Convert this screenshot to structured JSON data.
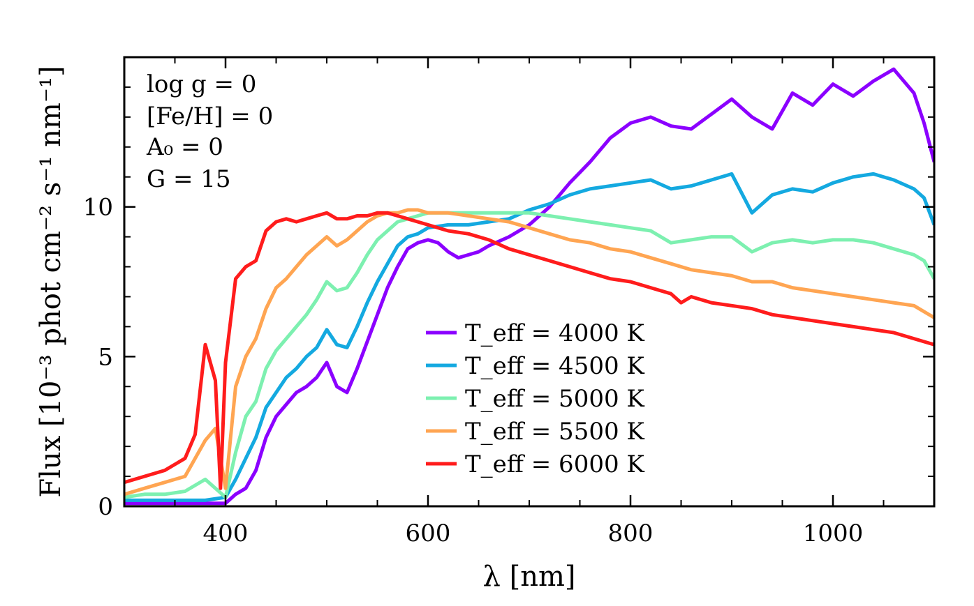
{
  "chart_data": {
    "type": "line",
    "title": "",
    "xlabel": "λ [nm]",
    "ylabel": "Flux [10⁻³ phot cm⁻² s⁻¹ nm⁻¹]",
    "xlim": [
      300,
      1100
    ],
    "ylim": [
      0,
      15
    ],
    "xticks": [
      400,
      600,
      800,
      1000
    ],
    "xtick_labels": [
      "400",
      "600",
      "800",
      "1000"
    ],
    "yticks": [
      0,
      5,
      10
    ],
    "ytick_labels": [
      "0",
      "5",
      "10"
    ],
    "grid": false,
    "annotations": [
      "log g = 0",
      "[Fe/H] = 0",
      "A₀ = 0",
      "G = 15"
    ],
    "legend_position": "center",
    "series": [
      {
        "name": "T_eff = 4000 K",
        "color": "#8b00ff",
        "x": [
          300,
          320,
          340,
          360,
          380,
          400,
          410,
          420,
          430,
          440,
          450,
          460,
          470,
          480,
          490,
          500,
          510,
          520,
          530,
          540,
          550,
          560,
          570,
          580,
          590,
          600,
          610,
          620,
          630,
          640,
          650,
          660,
          680,
          700,
          720,
          740,
          760,
          780,
          800,
          820,
          840,
          860,
          880,
          900,
          920,
          940,
          960,
          980,
          1000,
          1020,
          1040,
          1060,
          1080,
          1090,
          1100
        ],
        "y": [
          0.1,
          0.1,
          0.1,
          0.1,
          0.1,
          0.1,
          0.4,
          0.6,
          1.2,
          2.3,
          3.0,
          3.4,
          3.8,
          4.0,
          4.3,
          4.8,
          4.0,
          3.8,
          4.6,
          5.5,
          6.4,
          7.3,
          8.0,
          8.6,
          8.8,
          8.9,
          8.8,
          8.5,
          8.3,
          8.4,
          8.5,
          8.7,
          9.0,
          9.4,
          10.0,
          10.8,
          11.5,
          12.3,
          12.8,
          13.0,
          12.7,
          12.6,
          13.1,
          13.6,
          13.0,
          12.6,
          13.8,
          13.4,
          14.1,
          13.7,
          14.2,
          14.6,
          13.8,
          12.8,
          11.5
        ]
      },
      {
        "name": "T_eff = 4500 K",
        "color": "#14a9e0",
        "x": [
          300,
          320,
          340,
          360,
          380,
          400,
          410,
          420,
          430,
          440,
          450,
          460,
          470,
          480,
          490,
          500,
          510,
          520,
          530,
          540,
          550,
          560,
          570,
          580,
          590,
          600,
          620,
          640,
          660,
          680,
          700,
          720,
          740,
          760,
          780,
          800,
          820,
          840,
          860,
          880,
          900,
          920,
          940,
          960,
          980,
          1000,
          1020,
          1040,
          1060,
          1080,
          1090,
          1100
        ],
        "y": [
          0.2,
          0.2,
          0.2,
          0.2,
          0.2,
          0.3,
          0.9,
          1.6,
          2.3,
          3.3,
          3.8,
          4.3,
          4.6,
          5.0,
          5.3,
          5.9,
          5.4,
          5.3,
          6.0,
          6.8,
          7.5,
          8.1,
          8.7,
          9.0,
          9.1,
          9.3,
          9.4,
          9.4,
          9.5,
          9.6,
          9.9,
          10.1,
          10.4,
          10.6,
          10.7,
          10.8,
          10.9,
          10.6,
          10.7,
          10.9,
          11.1,
          9.8,
          10.4,
          10.6,
          10.5,
          10.8,
          11.0,
          11.1,
          10.9,
          10.6,
          10.3,
          9.4
        ]
      },
      {
        "name": "T_eff = 5000 K",
        "color": "#7df0b0",
        "x": [
          300,
          320,
          340,
          360,
          380,
          400,
          410,
          420,
          430,
          440,
          450,
          460,
          470,
          480,
          490,
          500,
          510,
          520,
          530,
          540,
          550,
          560,
          570,
          580,
          590,
          600,
          620,
          640,
          660,
          680,
          700,
          720,
          740,
          760,
          780,
          800,
          820,
          840,
          860,
          880,
          900,
          920,
          940,
          960,
          980,
          1000,
          1020,
          1040,
          1060,
          1080,
          1090,
          1100
        ],
        "y": [
          0.3,
          0.4,
          0.4,
          0.5,
          0.9,
          0.3,
          1.8,
          3.0,
          3.5,
          4.6,
          5.2,
          5.6,
          6.0,
          6.4,
          6.9,
          7.5,
          7.2,
          7.3,
          7.8,
          8.4,
          8.9,
          9.2,
          9.5,
          9.6,
          9.7,
          9.8,
          9.8,
          9.8,
          9.8,
          9.8,
          9.8,
          9.7,
          9.6,
          9.5,
          9.4,
          9.3,
          9.2,
          8.8,
          8.9,
          9.0,
          9.0,
          8.5,
          8.8,
          8.9,
          8.8,
          8.9,
          8.9,
          8.8,
          8.6,
          8.4,
          8.2,
          7.6
        ]
      },
      {
        "name": "T_eff = 5500 K",
        "color": "#ffa552",
        "x": [
          300,
          320,
          340,
          360,
          380,
          390,
          400,
          410,
          420,
          430,
          440,
          450,
          460,
          470,
          480,
          490,
          500,
          510,
          520,
          530,
          540,
          550,
          560,
          570,
          580,
          590,
          600,
          620,
          640,
          660,
          680,
          700,
          720,
          740,
          760,
          780,
          800,
          820,
          840,
          860,
          880,
          900,
          920,
          940,
          960,
          980,
          1000,
          1020,
          1040,
          1060,
          1080,
          1100
        ],
        "y": [
          0.4,
          0.6,
          0.8,
          1.0,
          2.2,
          2.6,
          0.6,
          4.0,
          5.0,
          5.6,
          6.6,
          7.3,
          7.6,
          8.0,
          8.4,
          8.7,
          9.0,
          8.7,
          8.9,
          9.2,
          9.5,
          9.7,
          9.8,
          9.8,
          9.9,
          9.9,
          9.8,
          9.8,
          9.7,
          9.6,
          9.5,
          9.3,
          9.1,
          8.9,
          8.8,
          8.6,
          8.5,
          8.3,
          8.1,
          7.9,
          7.8,
          7.7,
          7.5,
          7.5,
          7.3,
          7.2,
          7.1,
          7.0,
          6.9,
          6.8,
          6.7,
          6.3
        ]
      },
      {
        "name": "T_eff = 6000 K",
        "color": "#ff1c1c",
        "x": [
          300,
          320,
          340,
          360,
          370,
          380,
          390,
          395,
          400,
          410,
          420,
          430,
          440,
          450,
          460,
          470,
          480,
          490,
          500,
          510,
          520,
          530,
          540,
          550,
          560,
          570,
          580,
          590,
          600,
          620,
          640,
          660,
          680,
          700,
          720,
          740,
          760,
          780,
          800,
          820,
          840,
          850,
          860,
          880,
          900,
          920,
          940,
          960,
          980,
          1000,
          1020,
          1040,
          1060,
          1080,
          1100
        ],
        "y": [
          0.8,
          1.0,
          1.2,
          1.6,
          2.4,
          5.4,
          4.2,
          0.6,
          4.8,
          7.6,
          8.0,
          8.2,
          9.2,
          9.5,
          9.6,
          9.5,
          9.6,
          9.7,
          9.8,
          9.6,
          9.6,
          9.7,
          9.7,
          9.8,
          9.8,
          9.7,
          9.6,
          9.5,
          9.4,
          9.2,
          9.1,
          8.9,
          8.6,
          8.4,
          8.2,
          8.0,
          7.8,
          7.6,
          7.5,
          7.3,
          7.1,
          6.8,
          7.0,
          6.8,
          6.7,
          6.6,
          6.4,
          6.3,
          6.2,
          6.1,
          6.0,
          5.9,
          5.8,
          5.6,
          5.4
        ]
      }
    ]
  }
}
